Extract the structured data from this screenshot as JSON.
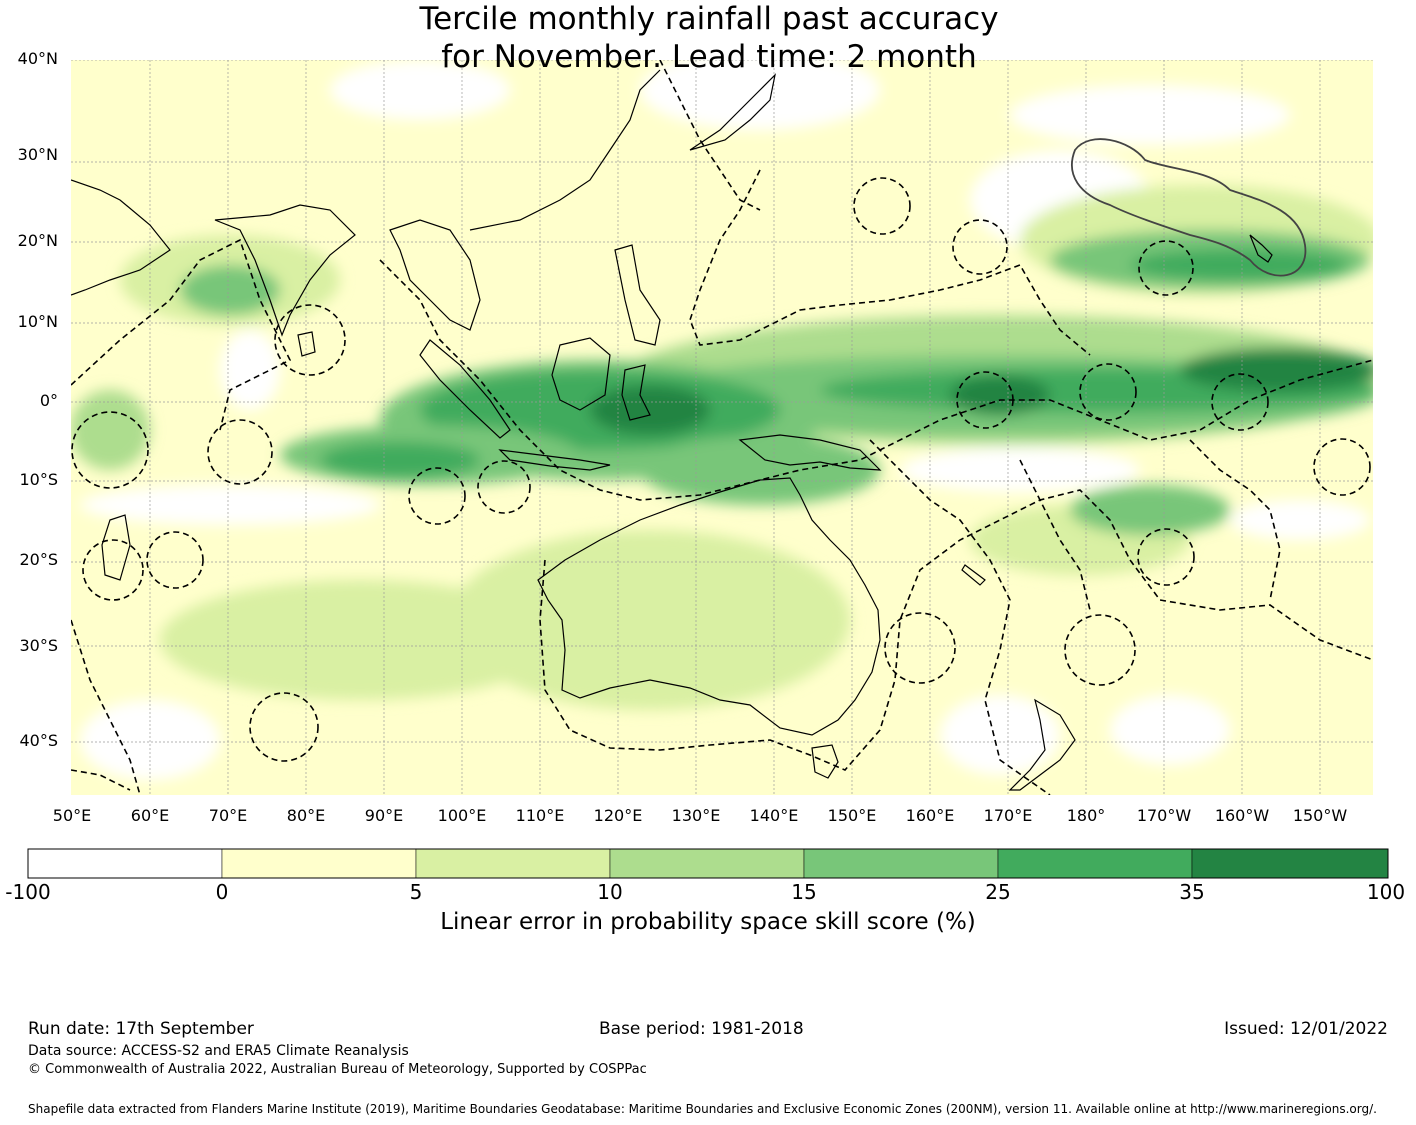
{
  "title": {
    "line1": "Tercile monthly rainfall past accuracy",
    "line2": "for November. Lead time: 2 month"
  },
  "map": {
    "lat_labels": [
      "40°N",
      "30°N",
      "20°N",
      "10°N",
      "0°",
      "10°S",
      "20°S",
      "30°S",
      "40°S"
    ],
    "lon_labels": [
      "50°E",
      "60°E",
      "70°E",
      "80°E",
      "90°E",
      "100°E",
      "110°E",
      "120°E",
      "130°E",
      "140°E",
      "150°E",
      "160°E",
      "170°E",
      "180°",
      "170°W",
      "160°W",
      "150°W"
    ],
    "lon_range": [
      50,
      215
    ],
    "lat_range": [
      -46,
      40
    ]
  },
  "colorbar": {
    "ticks": [
      "-100",
      "0",
      "5",
      "10",
      "15",
      "25",
      "35",
      "100"
    ],
    "colors": [
      "#ffffff",
      "#ffffcc",
      "#d9f0a3",
      "#addd8e",
      "#78c679",
      "#41ab5d",
      "#238443"
    ],
    "label": "Linear error in probability space skill score (%)"
  },
  "footer": {
    "run_date": "Run date: 17th September",
    "base_period": "Base period: 1981-2018",
    "issued": "Issued: 12/01/2022",
    "data_source": "Data source: ACCESS-S2 and ERA5 Climate Reanalysis",
    "copyright": "© Commonwealth of Australia 2022, Australian Bureau of Meteorology, Supported by COSPPac",
    "shapefile": "Shapefile data extracted from Flanders Marine Institute (2019), Maritime Boundaries Geodatabase: Maritime Boundaries and Exclusive Economic Zones (200NM), version 11. Available online at http://www.marineregions.org/."
  }
}
